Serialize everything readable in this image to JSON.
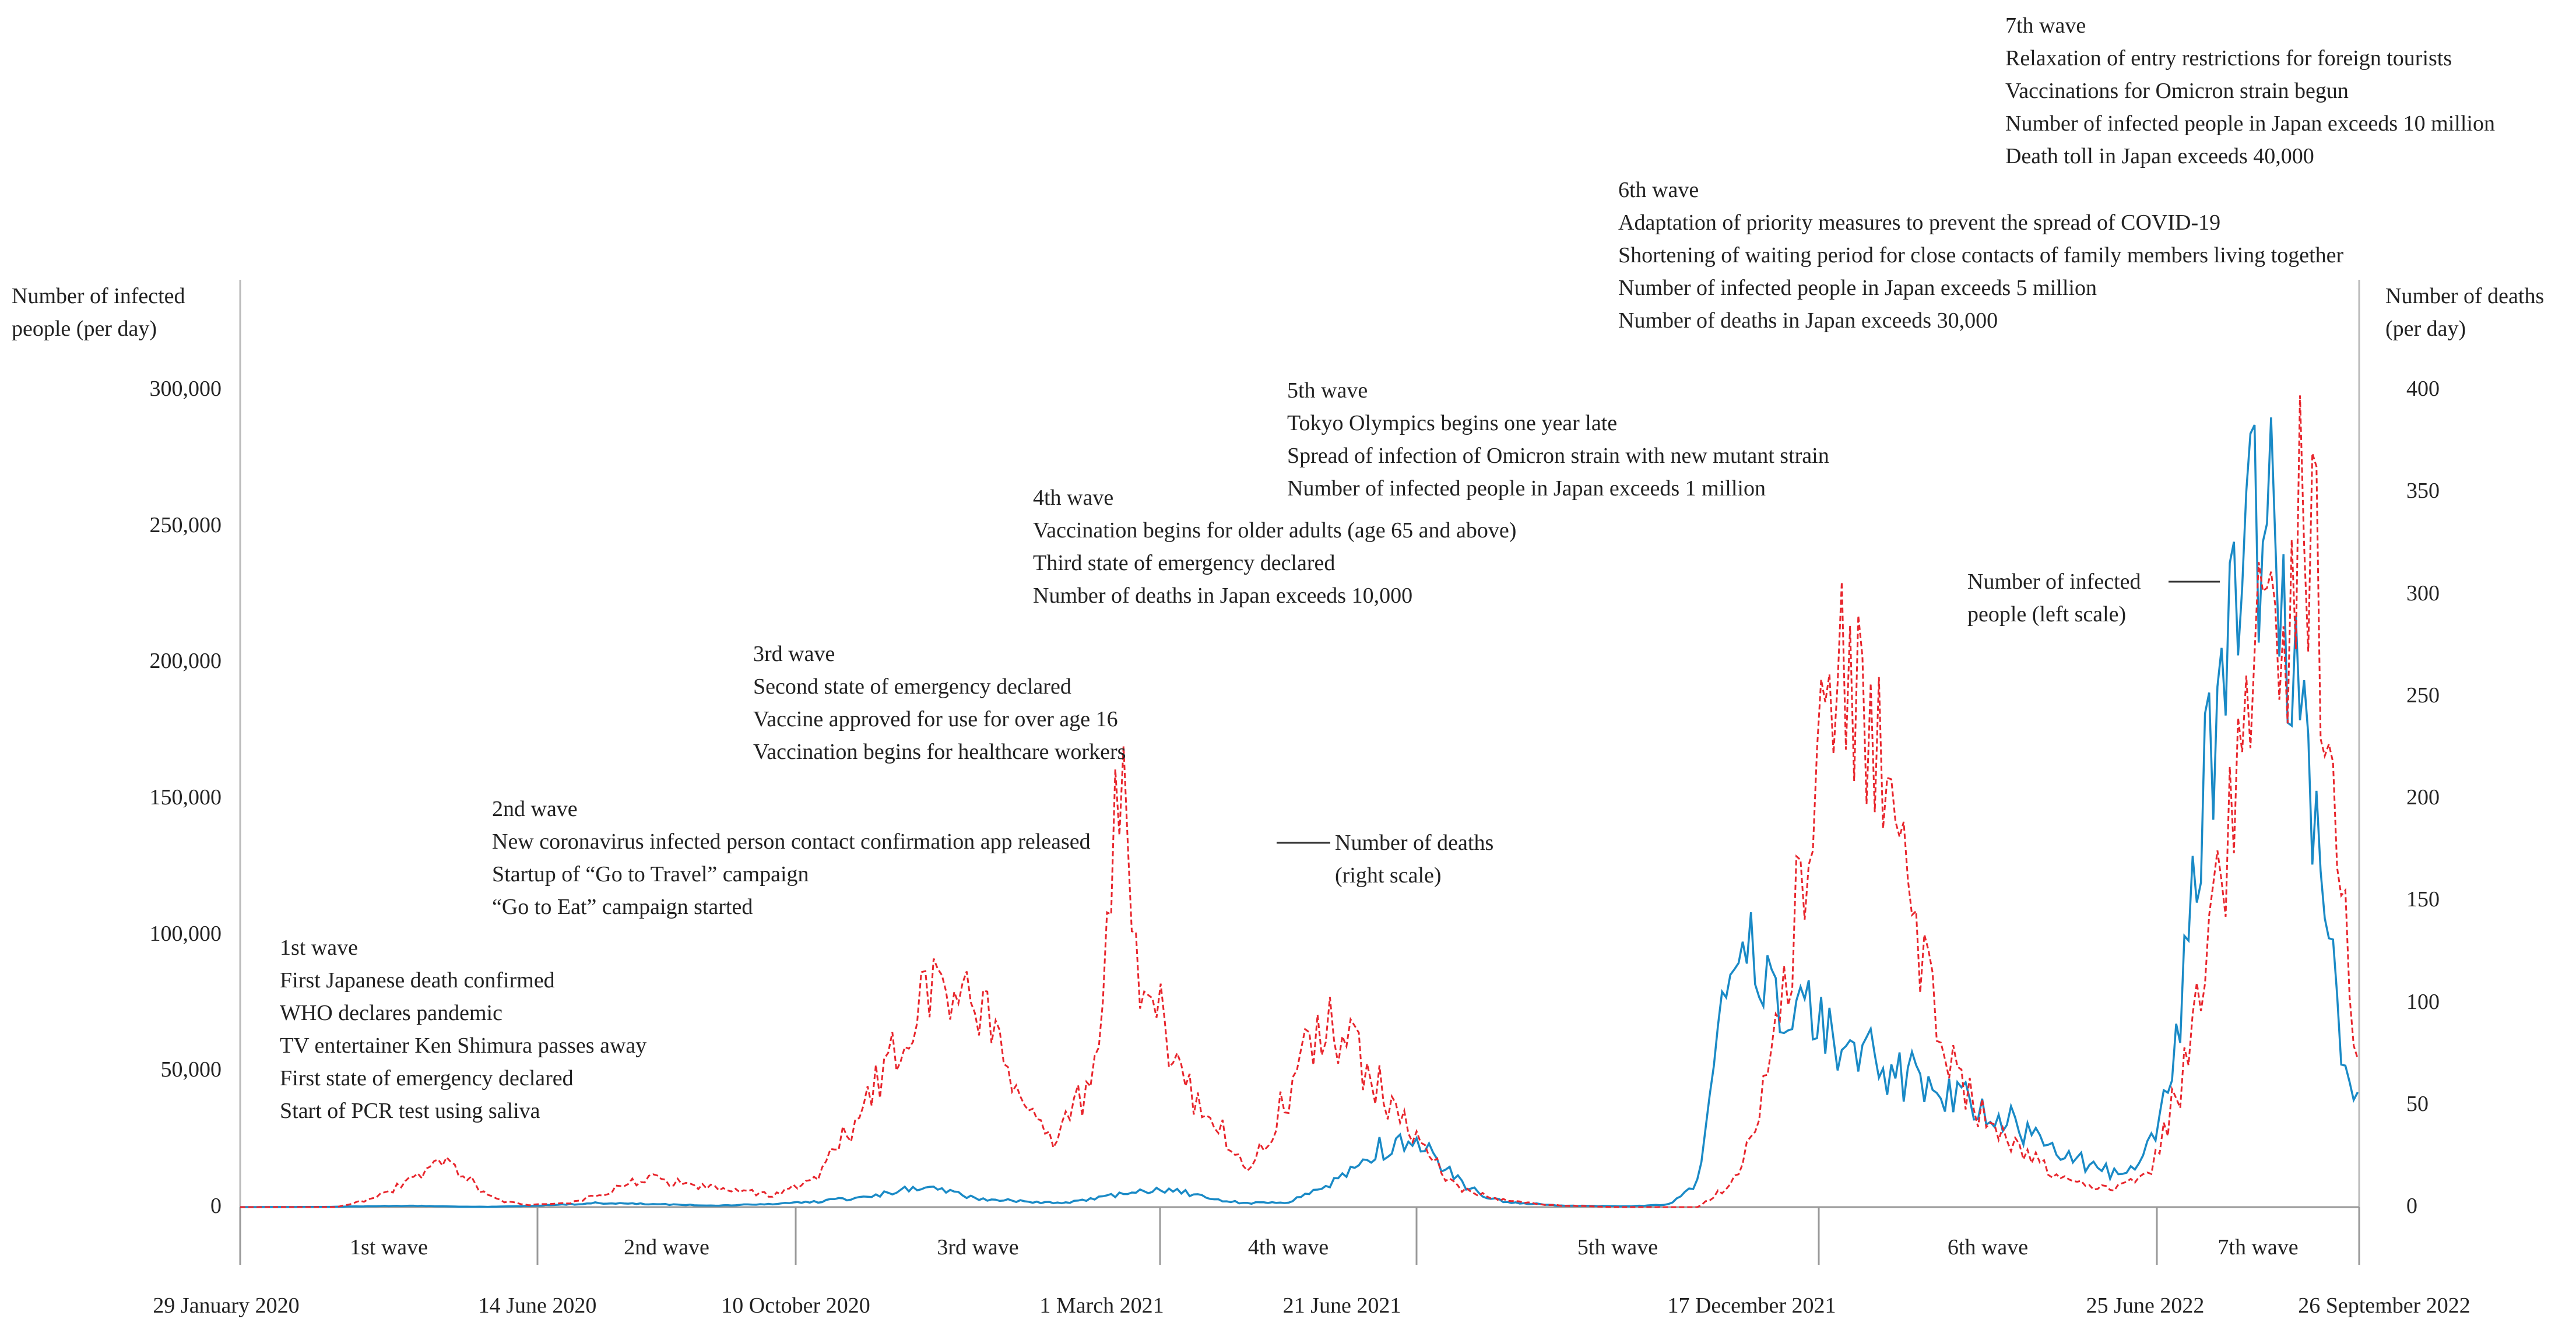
{
  "chart_data": {
    "type": "line",
    "left_axis": {
      "title_lines": [
        "Number of infected",
        "people (per day)"
      ],
      "ticks": [
        "0",
        "50,000",
        "100,000",
        "150,000",
        "200,000",
        "250,000",
        "300,000"
      ],
      "ylim": [
        0,
        300000
      ]
    },
    "right_axis": {
      "title_lines": [
        "Number of deaths",
        "(per day)"
      ],
      "ticks": [
        "0",
        "50",
        "100",
        "150",
        "200",
        "250",
        "300",
        "350",
        "400"
      ],
      "ylim": [
        0,
        400
      ]
    },
    "x_dates": [
      "29 January 2020",
      "14 June 2020",
      "10 October 2020",
      "1 March 2021",
      "21 June 2021",
      "17 December 2021",
      "25 June 2022",
      "26 September 2022"
    ],
    "wave_bands": [
      "1st wave",
      "2nd wave",
      "3rd wave",
      "4th wave",
      "5th wave",
      "6th wave",
      "7th wave"
    ],
    "series": [
      {
        "name": "Number of infected people (left scale)",
        "axis": "left",
        "color": "#1a8ac6",
        "style": "solid",
        "points": [
          [
            0,
            0
          ],
          [
            60,
            50
          ],
          [
            90,
            300
          ],
          [
            120,
            500
          ],
          [
            140,
            400
          ],
          [
            160,
            200
          ],
          [
            180,
            100
          ],
          [
            200,
            300
          ],
          [
            230,
            800
          ],
          [
            260,
            1500
          ],
          [
            290,
            1200
          ],
          [
            320,
            800
          ],
          [
            350,
            600
          ],
          [
            380,
            1000
          ],
          [
            420,
            2000
          ],
          [
            450,
            3500
          ],
          [
            470,
            5000
          ],
          [
            490,
            7000
          ],
          [
            510,
            6000
          ],
          [
            540,
            3000
          ],
          [
            570,
            2000
          ],
          [
            600,
            1500
          ],
          [
            620,
            3000
          ],
          [
            640,
            4500
          ],
          [
            660,
            6000
          ],
          [
            675,
            6500
          ],
          [
            690,
            5000
          ],
          [
            710,
            2500
          ],
          [
            730,
            1500
          ],
          [
            760,
            1500
          ],
          [
            790,
            8000
          ],
          [
            810,
            15000
          ],
          [
            830,
            22000
          ],
          [
            850,
            25000
          ],
          [
            865,
            20000
          ],
          [
            880,
            12000
          ],
          [
            900,
            5000
          ],
          [
            920,
            2000
          ],
          [
            960,
            500
          ],
          [
            1010,
            300
          ],
          [
            1040,
            1000
          ],
          [
            1060,
            10000
          ],
          [
            1070,
            40000
          ],
          [
            1080,
            80000
          ],
          [
            1090,
            95000
          ],
          [
            1100,
            100000
          ],
          [
            1110,
            90000
          ],
          [
            1120,
            80000
          ],
          [
            1140,
            70000
          ],
          [
            1160,
            62000
          ],
          [
            1180,
            55000
          ],
          [
            1200,
            50000
          ],
          [
            1230,
            45000
          ],
          [
            1260,
            38000
          ],
          [
            1290,
            30000
          ],
          [
            1320,
            20000
          ],
          [
            1345,
            15000
          ],
          [
            1360,
            13000
          ],
          [
            1380,
            15000
          ],
          [
            1395,
            30000
          ],
          [
            1405,
            50000
          ],
          [
            1415,
            100000
          ],
          [
            1425,
            150000
          ],
          [
            1435,
            180000
          ],
          [
            1445,
            230000
          ],
          [
            1455,
            245000
          ],
          [
            1465,
            260000
          ],
          [
            1475,
            240000
          ],
          [
            1485,
            220000
          ],
          [
            1495,
            180000
          ],
          [
            1505,
            150000
          ],
          [
            1515,
            100000
          ],
          [
            1525,
            70000
          ],
          [
            1532,
            50000
          ],
          [
            1540,
            33000
          ]
        ]
      },
      {
        "name": "Number of deaths (right scale)",
        "axis": "right",
        "color": "#e8262d",
        "style": "dashed",
        "points": [
          [
            0,
            0
          ],
          [
            70,
            0
          ],
          [
            100,
            5
          ],
          [
            130,
            15
          ],
          [
            145,
            22
          ],
          [
            160,
            18
          ],
          [
            175,
            8
          ],
          [
            190,
            3
          ],
          [
            210,
            1
          ],
          [
            240,
            2
          ],
          [
            270,
            8
          ],
          [
            300,
            15
          ],
          [
            330,
            10
          ],
          [
            360,
            8
          ],
          [
            390,
            6
          ],
          [
            420,
            15
          ],
          [
            440,
            35
          ],
          [
            460,
            55
          ],
          [
            480,
            80
          ],
          [
            500,
            100
          ],
          [
            520,
            110
          ],
          [
            540,
            95
          ],
          [
            560,
            70
          ],
          [
            575,
            50
          ],
          [
            590,
            30
          ],
          [
            610,
            50
          ],
          [
            625,
            95
          ],
          [
            640,
            210
          ],
          [
            655,
            110
          ],
          [
            670,
            90
          ],
          [
            690,
            60
          ],
          [
            710,
            40
          ],
          [
            730,
            20
          ],
          [
            750,
            40
          ],
          [
            770,
            70
          ],
          [
            790,
            90
          ],
          [
            810,
            75
          ],
          [
            830,
            55
          ],
          [
            850,
            35
          ],
          [
            870,
            20
          ],
          [
            890,
            8
          ],
          [
            920,
            3
          ],
          [
            950,
            1
          ],
          [
            1000,
            0
          ],
          [
            1060,
            0
          ],
          [
            1090,
            15
          ],
          [
            1110,
            60
          ],
          [
            1130,
            140
          ],
          [
            1150,
            220
          ],
          [
            1165,
            280
          ],
          [
            1175,
            260
          ],
          [
            1190,
            220
          ],
          [
            1210,
            160
          ],
          [
            1230,
            100
          ],
          [
            1250,
            60
          ],
          [
            1270,
            40
          ],
          [
            1290,
            30
          ],
          [
            1310,
            20
          ],
          [
            1330,
            15
          ],
          [
            1350,
            10
          ],
          [
            1370,
            10
          ],
          [
            1390,
            20
          ],
          [
            1410,
            60
          ],
          [
            1430,
            120
          ],
          [
            1450,
            200
          ],
          [
            1470,
            280
          ],
          [
            1480,
            240
          ],
          [
            1495,
            330
          ],
          [
            1510,
            300
          ],
          [
            1520,
            240
          ],
          [
            1530,
            150
          ],
          [
            1540,
            50
          ]
        ]
      }
    ],
    "callouts": {
      "deaths": [
        "Number of deaths",
        "(right scale)"
      ],
      "infected": [
        "Number of infected",
        "people (left scale)"
      ]
    },
    "annotations": [
      {
        "id": "w1",
        "lines": [
          "1st wave",
          "First Japanese death confirmed",
          "WHO declares pandemic",
          "TV entertainer Ken Shimura passes away",
          "First state of emergency declared",
          "Start of PCR test using saliva"
        ]
      },
      {
        "id": "w2",
        "lines": [
          "2nd wave",
          "New coronavirus infected person contact confirmation app released",
          "Startup of “Go to Travel” campaign",
          "“Go to Eat” campaign started"
        ]
      },
      {
        "id": "w3",
        "lines": [
          "3rd wave",
          "Second state of emergency declared",
          "Vaccine approved for use for over age 16",
          "Vaccination begins for healthcare workers"
        ]
      },
      {
        "id": "w4",
        "lines": [
          "4th wave",
          "Vaccination begins for older adults (age 65 and above)",
          "Third state of emergency declared",
          "Number of deaths in Japan exceeds 10,000"
        ]
      },
      {
        "id": "w5",
        "lines": [
          "5th wave",
          "Tokyo Olympics begins one year late",
          "Spread of infection of Omicron strain with new mutant strain",
          "Number of infected people in Japan exceeds 1 million"
        ]
      },
      {
        "id": "w6",
        "lines": [
          "6th wave",
          "Adaptation of priority measures to prevent the spread of COVID-19",
          "Shortening of waiting period for close contacts of family members living together",
          "Number of infected people in Japan exceeds 5 million",
          "Number of deaths in Japan exceeds 30,000"
        ]
      },
      {
        "id": "w7",
        "lines": [
          "7th wave",
          "Relaxation of entry restrictions for foreign tourists",
          "Vaccinations for Omicron strain begun",
          "Number of infected people in Japan exceeds 10 million",
          "Death toll in Japan exceeds 40,000"
        ]
      }
    ]
  }
}
